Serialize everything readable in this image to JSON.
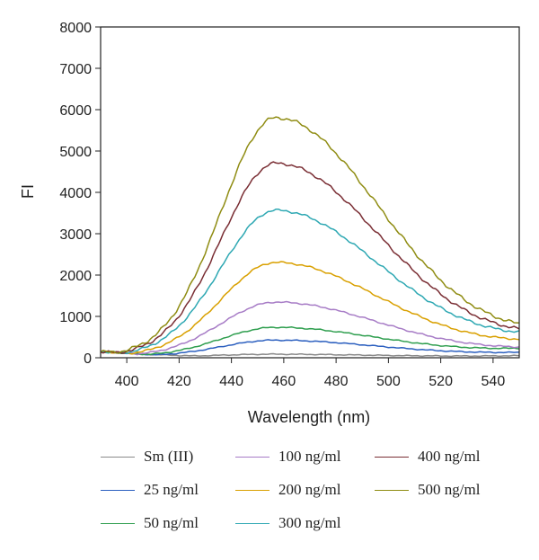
{
  "chart_data": {
    "type": "line",
    "title": "",
    "xlabel": "Wavelength (nm)",
    "ylabel": "FI",
    "xlim": [
      390,
      550
    ],
    "ylim": [
      0,
      8000
    ],
    "xticks": [
      400,
      420,
      440,
      460,
      480,
      500,
      520,
      540
    ],
    "yticks": [
      0,
      1000,
      2000,
      3000,
      4000,
      5000,
      6000,
      7000,
      8000
    ],
    "grid": false,
    "legend_position": "bottom",
    "peak_wavelength": 457,
    "baseline": 150,
    "series": [
      {
        "name": "Sm (III)",
        "color": "#8a8a8a",
        "peak": 80,
        "end": 50
      },
      {
        "name": "25 ng/ml",
        "color": "#2b5fbf",
        "peak": 420,
        "end": 130
      },
      {
        "name": "50 ng/ml",
        "color": "#2e9e4e",
        "peak": 730,
        "end": 230
      },
      {
        "name": "100 ng/ml",
        "color": "#a77cc6",
        "peak": 1340,
        "end": 260
      },
      {
        "name": "200 ng/ml",
        "color": "#d9a000",
        "peak": 2300,
        "end": 450
      },
      {
        "name": "300 ng/ml",
        "color": "#2ea8b3",
        "peak": 3560,
        "end": 620
      },
      {
        "name": "400 ng/ml",
        "color": "#7a2e34",
        "peak": 4700,
        "end": 700
      },
      {
        "name": "500 ng/ml",
        "color": "#8f8c12",
        "peak": 5800,
        "end": 820
      }
    ]
  }
}
